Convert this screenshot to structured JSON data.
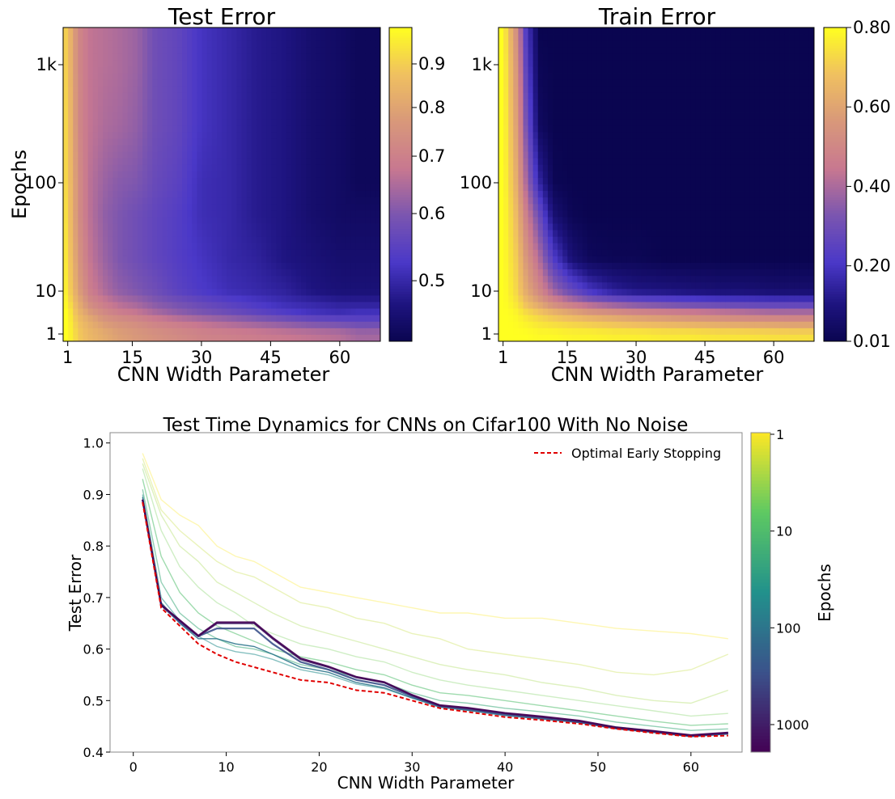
{
  "chart_data": [
    {
      "type": "heatmap",
      "title": "Test Error",
      "xlabel": "CNN Width Parameter",
      "ylabel": "Epochs",
      "xticks": [
        "1",
        "15",
        "30",
        "45",
        "60"
      ],
      "xtick_values": [
        1,
        15,
        30,
        45,
        60
      ],
      "yticks": [
        "1",
        "10",
        "100",
        "1k"
      ],
      "ytick_values": [
        1,
        10,
        100,
        1000
      ],
      "xlim": [
        0,
        68.8
      ],
      "ylim": [
        0.7,
        2000
      ],
      "yscale": "log",
      "colorbar": {
        "ticks": [
          "0.5",
          "0.6",
          "0.7",
          "0.8",
          "0.9"
        ],
        "tick_values": [
          0.5,
          0.6,
          0.7,
          0.8,
          0.9
        ],
        "range": [
          0.42,
          0.96
        ],
        "norm": "nonlinear"
      },
      "grid_widths": [
        1,
        2,
        4,
        6,
        9,
        12,
        16,
        20,
        25,
        30,
        36,
        42,
        48,
        54,
        60,
        64
      ],
      "grid_epochs": [
        1,
        2,
        3,
        5,
        10,
        20,
        50,
        100,
        300,
        1000,
        2000
      ],
      "values": [
        [
          0.96,
          0.93,
          0.88,
          0.85,
          0.82,
          0.79,
          0.77,
          0.75,
          0.73,
          0.71,
          0.7,
          0.69,
          0.68,
          0.67,
          0.66,
          0.64
        ],
        [
          0.96,
          0.92,
          0.86,
          0.82,
          0.77,
          0.75,
          0.73,
          0.7,
          0.68,
          0.66,
          0.64,
          0.62,
          0.6,
          0.58,
          0.57,
          0.56
        ],
        [
          0.96,
          0.91,
          0.83,
          0.78,
          0.73,
          0.7,
          0.68,
          0.65,
          0.62,
          0.6,
          0.58,
          0.56,
          0.54,
          0.52,
          0.51,
          0.52
        ],
        [
          0.95,
          0.89,
          0.8,
          0.73,
          0.69,
          0.66,
          0.64,
          0.61,
          0.59,
          0.57,
          0.55,
          0.53,
          0.51,
          0.5,
          0.49,
          0.49
        ],
        [
          0.94,
          0.86,
          0.76,
          0.69,
          0.65,
          0.62,
          0.6,
          0.58,
          0.55,
          0.53,
          0.51,
          0.5,
          0.49,
          0.47,
          0.46,
          0.46
        ],
        [
          0.93,
          0.84,
          0.73,
          0.67,
          0.63,
          0.6,
          0.58,
          0.56,
          0.54,
          0.52,
          0.5,
          0.49,
          0.47,
          0.46,
          0.45,
          0.45
        ],
        [
          0.92,
          0.82,
          0.71,
          0.66,
          0.62,
          0.6,
          0.58,
          0.56,
          0.54,
          0.51,
          0.5,
          0.48,
          0.47,
          0.45,
          0.44,
          0.44
        ],
        [
          0.91,
          0.82,
          0.71,
          0.66,
          0.63,
          0.61,
          0.6,
          0.57,
          0.55,
          0.51,
          0.5,
          0.48,
          0.47,
          0.45,
          0.44,
          0.43
        ],
        [
          0.91,
          0.81,
          0.7,
          0.67,
          0.65,
          0.64,
          0.62,
          0.58,
          0.56,
          0.52,
          0.5,
          0.48,
          0.47,
          0.45,
          0.44,
          0.43
        ],
        [
          0.9,
          0.8,
          0.7,
          0.67,
          0.66,
          0.65,
          0.63,
          0.58,
          0.56,
          0.52,
          0.5,
          0.48,
          0.47,
          0.45,
          0.44,
          0.43
        ],
        [
          0.9,
          0.8,
          0.7,
          0.67,
          0.66,
          0.65,
          0.63,
          0.58,
          0.56,
          0.52,
          0.5,
          0.48,
          0.47,
          0.45,
          0.44,
          0.43
        ]
      ]
    },
    {
      "type": "heatmap",
      "title": "Train Error",
      "xlabel": "CNN Width Parameter",
      "ylabel": "",
      "xticks": [
        "1",
        "15",
        "30",
        "45",
        "60"
      ],
      "xtick_values": [
        1,
        15,
        30,
        45,
        60
      ],
      "yticks": [
        "1",
        "10",
        "100",
        "1k"
      ],
      "ytick_values": [
        1,
        10,
        100,
        1000
      ],
      "xlim": [
        0,
        68.8
      ],
      "ylim": [
        0.7,
        2000
      ],
      "yscale": "log",
      "colorbar": {
        "ticks": [
          "0.01",
          "0.20",
          "0.40",
          "0.60",
          "0.80"
        ],
        "tick_values": [
          0.01,
          0.2,
          0.4,
          0.6,
          0.8
        ],
        "range": [
          0.01,
          0.8
        ],
        "norm": "linear"
      },
      "grid_widths": [
        1,
        2,
        4,
        6,
        9,
        12,
        16,
        20,
        25,
        30,
        36,
        42,
        48,
        54,
        60,
        64
      ],
      "grid_epochs": [
        1,
        2,
        3,
        5,
        10,
        20,
        50,
        100,
        300,
        1000,
        2000
      ],
      "values": [
        [
          0.8,
          0.8,
          0.8,
          0.8,
          0.79,
          0.79,
          0.78,
          0.78,
          0.77,
          0.77,
          0.76,
          0.76,
          0.75,
          0.75,
          0.74,
          0.74
        ],
        [
          0.8,
          0.8,
          0.79,
          0.77,
          0.74,
          0.72,
          0.7,
          0.68,
          0.66,
          0.64,
          0.62,
          0.6,
          0.58,
          0.56,
          0.55,
          0.54
        ],
        [
          0.8,
          0.8,
          0.78,
          0.74,
          0.7,
          0.66,
          0.62,
          0.58,
          0.55,
          0.52,
          0.5,
          0.48,
          0.46,
          0.44,
          0.42,
          0.42
        ],
        [
          0.8,
          0.79,
          0.75,
          0.68,
          0.6,
          0.52,
          0.45,
          0.4,
          0.36,
          0.33,
          0.31,
          0.29,
          0.27,
          0.26,
          0.25,
          0.25
        ],
        [
          0.8,
          0.78,
          0.72,
          0.62,
          0.5,
          0.38,
          0.28,
          0.2,
          0.14,
          0.11,
          0.1,
          0.09,
          0.08,
          0.08,
          0.07,
          0.07
        ],
        [
          0.8,
          0.77,
          0.7,
          0.56,
          0.4,
          0.22,
          0.08,
          0.03,
          0.02,
          0.02,
          0.01,
          0.01,
          0.01,
          0.01,
          0.01,
          0.01
        ],
        [
          0.8,
          0.76,
          0.66,
          0.48,
          0.28,
          0.08,
          0.02,
          0.01,
          0.01,
          0.01,
          0.01,
          0.01,
          0.01,
          0.01,
          0.01,
          0.01
        ],
        [
          0.8,
          0.75,
          0.62,
          0.4,
          0.15,
          0.02,
          0.01,
          0.01,
          0.01,
          0.01,
          0.01,
          0.01,
          0.01,
          0.01,
          0.01,
          0.01
        ],
        [
          0.8,
          0.74,
          0.58,
          0.32,
          0.04,
          0.01,
          0.01,
          0.01,
          0.01,
          0.01,
          0.01,
          0.01,
          0.01,
          0.01,
          0.01,
          0.01
        ],
        [
          0.8,
          0.72,
          0.55,
          0.25,
          0.02,
          0.01,
          0.01,
          0.01,
          0.01,
          0.01,
          0.01,
          0.01,
          0.01,
          0.01,
          0.01,
          0.01
        ],
        [
          0.8,
          0.7,
          0.52,
          0.22,
          0.01,
          0.01,
          0.01,
          0.01,
          0.01,
          0.01,
          0.01,
          0.01,
          0.01,
          0.01,
          0.01,
          0.01
        ]
      ]
    },
    {
      "type": "line",
      "title": "Test Time Dynamics for CNNs on Cifar100 With No Noise",
      "xlabel": "CNN Width Parameter",
      "ylabel": "Test Error",
      "xlim": [
        -2.5,
        65.5
      ],
      "ylim": [
        0.4,
        1.02
      ],
      "xticks": [
        "0",
        "10",
        "20",
        "30",
        "40",
        "50",
        "60"
      ],
      "xtick_values": [
        0,
        10,
        20,
        30,
        40,
        50,
        60
      ],
      "yticks": [
        "0.4",
        "0.5",
        "0.6",
        "0.7",
        "0.8",
        "0.9",
        "1.0"
      ],
      "ytick_values": [
        0.4,
        0.5,
        0.6,
        0.7,
        0.8,
        0.9,
        1.0
      ],
      "legend": {
        "label": "Optimal Early Stopping",
        "placement": "top-right"
      },
      "colorbar": {
        "label": "Epochs",
        "ticks": [
          "1",
          "10",
          "100",
          "1000"
        ],
        "tick_values": [
          1,
          10,
          100,
          1000
        ],
        "range": [
          1,
          2000
        ],
        "scale": "log"
      },
      "x": [
        1,
        3,
        5,
        7,
        9,
        11,
        13,
        15,
        18,
        21,
        24,
        27,
        30,
        33,
        36,
        40,
        44,
        48,
        52,
        56,
        60,
        64
      ],
      "series": [
        {
          "epochs": 1,
          "values": [
            0.98,
            0.89,
            0.86,
            0.84,
            0.8,
            0.78,
            0.77,
            0.75,
            0.72,
            0.71,
            0.7,
            0.69,
            0.68,
            0.67,
            0.67,
            0.66,
            0.66,
            0.65,
            0.64,
            0.635,
            0.63,
            0.62
          ]
        },
        {
          "epochs": 2,
          "values": [
            0.97,
            0.87,
            0.83,
            0.8,
            0.77,
            0.75,
            0.74,
            0.72,
            0.69,
            0.68,
            0.66,
            0.65,
            0.63,
            0.62,
            0.6,
            0.59,
            0.58,
            0.57,
            0.555,
            0.55,
            0.56,
            0.59
          ]
        },
        {
          "epochs": 3,
          "values": [
            0.96,
            0.86,
            0.8,
            0.77,
            0.73,
            0.71,
            0.69,
            0.67,
            0.645,
            0.63,
            0.615,
            0.6,
            0.585,
            0.57,
            0.56,
            0.55,
            0.535,
            0.525,
            0.51,
            0.5,
            0.495,
            0.52
          ]
        },
        {
          "epochs": 5,
          "values": [
            0.95,
            0.83,
            0.76,
            0.72,
            0.69,
            0.67,
            0.645,
            0.63,
            0.61,
            0.6,
            0.585,
            0.575,
            0.555,
            0.54,
            0.53,
            0.52,
            0.51,
            0.5,
            0.49,
            0.48,
            0.47,
            0.475
          ]
        },
        {
          "epochs": 10,
          "values": [
            0.93,
            0.78,
            0.71,
            0.67,
            0.645,
            0.63,
            0.615,
            0.6,
            0.585,
            0.575,
            0.56,
            0.55,
            0.53,
            0.515,
            0.51,
            0.5,
            0.49,
            0.48,
            0.47,
            0.46,
            0.452,
            0.455
          ]
        },
        {
          "epochs": 20,
          "values": [
            0.91,
            0.73,
            0.67,
            0.64,
            0.62,
            0.605,
            0.6,
            0.59,
            0.57,
            0.56,
            0.545,
            0.535,
            0.515,
            0.5,
            0.495,
            0.485,
            0.478,
            0.47,
            0.458,
            0.45,
            0.442,
            0.445
          ]
        },
        {
          "epochs": 50,
          "values": [
            0.9,
            0.7,
            0.655,
            0.625,
            0.605,
            0.595,
            0.59,
            0.58,
            0.56,
            0.55,
            0.532,
            0.523,
            0.505,
            0.49,
            0.483,
            0.474,
            0.467,
            0.46,
            0.449,
            0.441,
            0.433,
            0.437
          ]
        },
        {
          "epochs": 100,
          "values": [
            0.895,
            0.69,
            0.65,
            0.62,
            0.62,
            0.61,
            0.605,
            0.59,
            0.565,
            0.555,
            0.535,
            0.525,
            0.505,
            0.487,
            0.481,
            0.471,
            0.464,
            0.457,
            0.445,
            0.438,
            0.43,
            0.435
          ]
        },
        {
          "epochs": 300,
          "values": [
            0.89,
            0.685,
            0.652,
            0.625,
            0.64,
            0.64,
            0.64,
            0.61,
            0.575,
            0.56,
            0.54,
            0.53,
            0.508,
            0.489,
            0.483,
            0.473,
            0.466,
            0.458,
            0.446,
            0.439,
            0.431,
            0.436
          ]
        },
        {
          "epochs": 1000,
          "values": [
            0.89,
            0.685,
            0.655,
            0.625,
            0.65,
            0.65,
            0.65,
            0.62,
            0.58,
            0.565,
            0.545,
            0.535,
            0.51,
            0.49,
            0.485,
            0.475,
            0.468,
            0.46,
            0.447,
            0.44,
            0.432,
            0.437
          ]
        },
        {
          "epochs": 2000,
          "values": [
            0.89,
            0.686,
            0.656,
            0.626,
            0.652,
            0.652,
            0.652,
            0.622,
            0.582,
            0.566,
            0.546,
            0.536,
            0.511,
            0.491,
            0.486,
            0.476,
            0.469,
            0.461,
            0.448,
            0.441,
            0.433,
            0.438
          ]
        }
      ],
      "optimal_early_stopping": [
        0.885,
        0.68,
        0.645,
        0.61,
        0.59,
        0.575,
        0.565,
        0.555,
        0.54,
        0.535,
        0.52,
        0.515,
        0.5,
        0.485,
        0.478,
        0.468,
        0.462,
        0.455,
        0.445,
        0.437,
        0.43,
        0.432
      ]
    }
  ]
}
